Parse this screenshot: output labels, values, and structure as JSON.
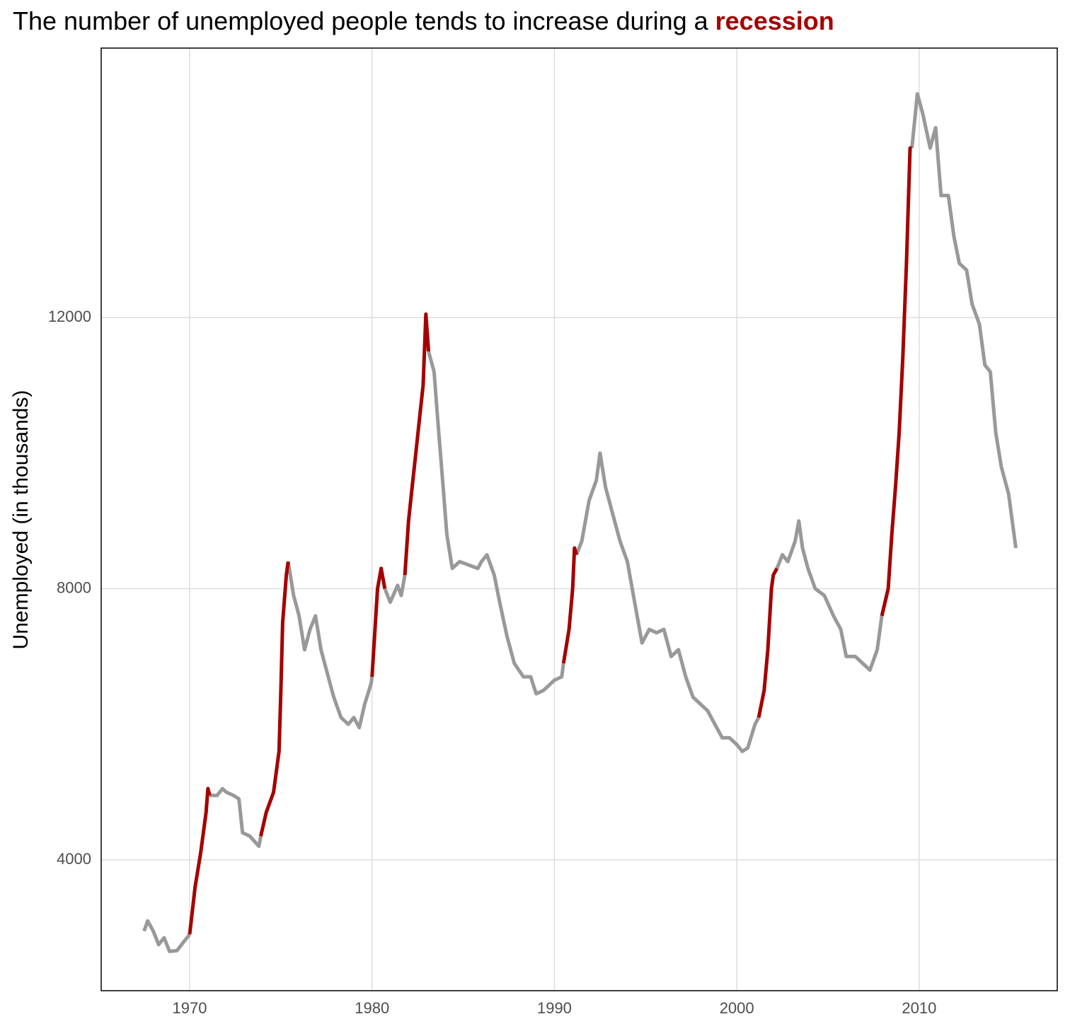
{
  "chart_data": {
    "type": "line",
    "title": "The number of unemployed people tends to increase during a",
    "title_emphasis": "recession",
    "y_label": "Unemployed (in thousands)",
    "grid": true,
    "xlim": [
      1965.15,
      2017.57
    ],
    "ylim": [
      2070,
      15975
    ],
    "xticks": [
      1970,
      1980,
      1990,
      2000,
      2010
    ],
    "yticks": [
      4000,
      8000,
      12000
    ],
    "x": [
      1967.5,
      1967.7,
      1968.0,
      1968.3,
      1968.6,
      1968.9,
      1969.3,
      1969.7,
      1970.0,
      1970.3,
      1970.6,
      1970.9,
      1971.0,
      1971.1,
      1971.5,
      1971.8,
      1972.0,
      1972.4,
      1972.7,
      1972.9,
      1973.3,
      1973.8,
      1973.9,
      1974.2,
      1974.6,
      1974.9,
      1975.0,
      1975.1,
      1975.3,
      1975.4,
      1975.7,
      1976.0,
      1976.3,
      1976.6,
      1976.9,
      1977.2,
      1977.5,
      1977.9,
      1978.3,
      1978.7,
      1979.0,
      1979.3,
      1979.6,
      1979.95,
      1980.0,
      1980.3,
      1980.5,
      1980.7,
      1981.0,
      1981.4,
      1981.6,
      1981.8,
      1982.0,
      1982.2,
      1982.4,
      1982.6,
      1982.8,
      1982.95,
      1983.1,
      1983.4,
      1983.6,
      1983.9,
      1984.1,
      1984.4,
      1984.8,
      1985.3,
      1985.8,
      1986.0,
      1986.3,
      1986.7,
      1987.0,
      1987.4,
      1987.8,
      1988.3,
      1988.7,
      1989.0,
      1989.4,
      1989.8,
      1990.0,
      1990.4,
      1990.5,
      1990.8,
      1991.0,
      1991.1,
      1991.2,
      1991.5,
      1991.9,
      1992.3,
      1992.5,
      1992.8,
      1993.2,
      1993.6,
      1994.0,
      1994.4,
      1994.8,
      1995.2,
      1995.6,
      1996.0,
      1996.4,
      1996.8,
      1997.2,
      1997.6,
      1998.0,
      1998.4,
      1998.8,
      1999.2,
      1999.6,
      2000.0,
      2000.3,
      2000.6,
      2001.0,
      2001.2,
      2001.5,
      2001.7,
      2001.9,
      2002.0,
      2002.2,
      2002.5,
      2002.8,
      2003.2,
      2003.4,
      2003.6,
      2003.9,
      2004.3,
      2004.8,
      2005.3,
      2005.7,
      2006.0,
      2006.5,
      2006.9,
      2007.3,
      2007.7,
      2007.95,
      2008.3,
      2008.5,
      2008.7,
      2008.9,
      2009.1,
      2009.3,
      2009.5,
      2009.6,
      2009.9,
      2010.2,
      2010.6,
      2010.9,
      2011.2,
      2011.6,
      2011.9,
      2012.2,
      2012.6,
      2012.9,
      2013.3,
      2013.6,
      2013.9,
      2014.2,
      2014.5,
      2014.9,
      2015.3
    ],
    "series": [
      {
        "color": "#999999",
        "values": [
          2950,
          3100,
          2950,
          2750,
          2850,
          2650,
          2660,
          2800,
          2900,
          null,
          null,
          null,
          null,
          4950,
          4950,
          5050,
          5000,
          4950,
          4900,
          4400,
          4350,
          4200,
          4350,
          null,
          null,
          null,
          null,
          null,
          null,
          8400,
          7900,
          7600,
          7100,
          7400,
          7600,
          7100,
          6800,
          6400,
          6100,
          6000,
          6100,
          5950,
          6300,
          6600,
          6700,
          null,
          null,
          8000,
          7800,
          8050,
          7900,
          8200,
          null,
          null,
          null,
          null,
          null,
          null,
          11500,
          11200,
          10500,
          9500,
          8800,
          8300,
          8400,
          8350,
          8300,
          8400,
          8500,
          8200,
          7800,
          7300,
          6900,
          6700,
          6700,
          6450,
          6500,
          6600,
          6650,
          6700,
          6900,
          null,
          null,
          null,
          8500,
          8700,
          9300,
          9600,
          10000,
          9500,
          9100,
          8700,
          8400,
          7800,
          7200,
          7400,
          7350,
          7400,
          7000,
          7100,
          6700,
          6400,
          6300,
          6200,
          6000,
          5800,
          5800,
          5700,
          5600,
          5650,
          6000,
          6100,
          null,
          null,
          null,
          null,
          8300,
          8500,
          8400,
          8700,
          9000,
          8600,
          8300,
          8000,
          7900,
          7600,
          7400,
          7000,
          7000,
          6900,
          6800,
          7100,
          7600,
          null,
          null,
          null,
          null,
          null,
          null,
          null,
          14500,
          15300,
          15000,
          14500,
          14800,
          13800,
          13800,
          13200,
          12800,
          12700,
          12200,
          11900,
          11300,
          11200,
          10300,
          9800,
          9400,
          8600
        ]
      },
      {
        "color": "#a50000",
        "values": [
          null,
          null,
          null,
          null,
          null,
          null,
          null,
          null,
          2900,
          3600,
          4100,
          4700,
          5050,
          4950,
          null,
          null,
          null,
          null,
          null,
          null,
          null,
          null,
          4350,
          4700,
          5000,
          5600,
          6500,
          7500,
          8200,
          8400,
          null,
          null,
          null,
          null,
          null,
          null,
          null,
          null,
          null,
          null,
          null,
          null,
          null,
          null,
          6700,
          8000,
          8300,
          8000,
          null,
          null,
          null,
          8200,
          9000,
          9500,
          10000,
          10500,
          11000,
          12050,
          11500,
          null,
          null,
          null,
          null,
          null,
          null,
          null,
          null,
          null,
          null,
          null,
          null,
          null,
          null,
          null,
          null,
          null,
          null,
          null,
          null,
          null,
          6900,
          7400,
          8000,
          8600,
          8500,
          null,
          null,
          null,
          null,
          null,
          null,
          null,
          null,
          null,
          null,
          null,
          null,
          null,
          null,
          null,
          null,
          null,
          null,
          null,
          null,
          null,
          null,
          null,
          null,
          null,
          null,
          6100,
          6500,
          7100,
          8000,
          8200,
          8300,
          null,
          null,
          null,
          null,
          null,
          null,
          null,
          null,
          null,
          null,
          null,
          null,
          null,
          null,
          null,
          7600,
          8000,
          8800,
          9500,
          10300,
          11400,
          12800,
          14500,
          14500,
          null,
          null,
          null,
          null,
          null,
          null,
          null,
          null,
          null,
          null,
          null,
          null,
          null,
          null,
          null,
          null,
          null
        ]
      }
    ]
  }
}
